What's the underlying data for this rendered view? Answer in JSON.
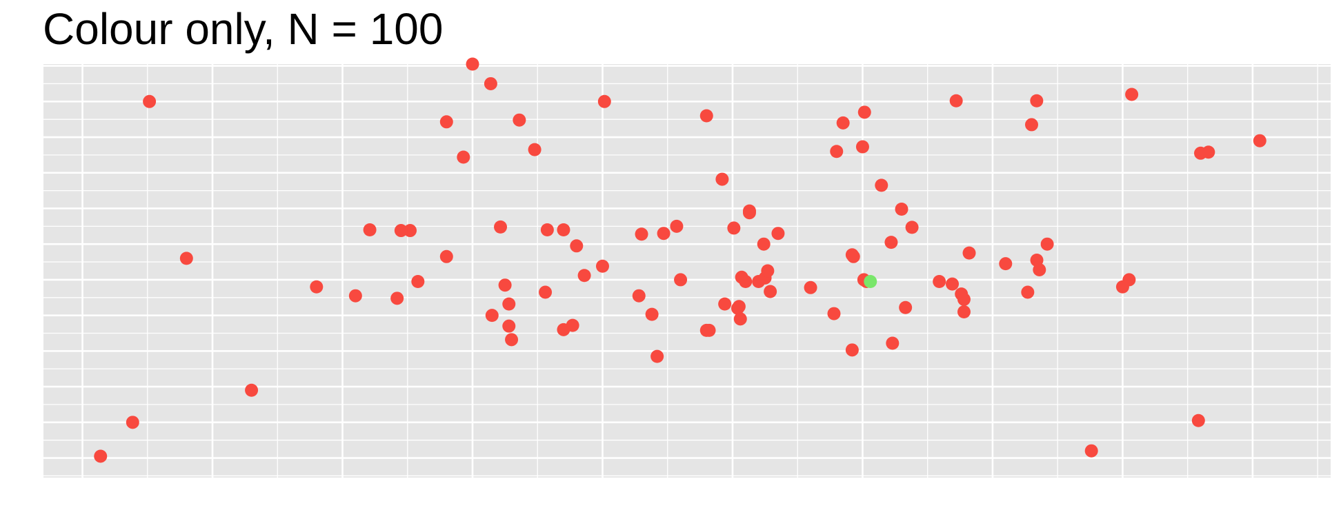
{
  "chart_data": {
    "type": "scatter",
    "title": "Colour only, N = 100",
    "xlabel": "",
    "ylabel": "",
    "grid": true,
    "legend": "none",
    "axis_ticks_labels_shown": false,
    "xlim": [
      -0.3,
      9.6
    ],
    "ylim": [
      -0.55,
      11.05
    ],
    "colors": {
      "panel": "#e5e5e5",
      "grid": "#ffffff",
      "default_point": "#f8493f",
      "highlight_point": "#79e66a"
    },
    "x": [
      0.139,
      3.0,
      3.478,
      4.8,
      7.339,
      6.015,
      0.515,
      6.72,
      8.07,
      7.3,
      9.055,
      4.015,
      3.14,
      3.36,
      8.6,
      8.66,
      1.3,
      8.583,
      7.76,
      5.13,
      5.85,
      2.93,
      4.92,
      5.13,
      2.21,
      2.52,
      4.57,
      5.35,
      6.145,
      2.8,
      6.0,
      6.3,
      5.8,
      0.386,
      3.215,
      5.01,
      0.8,
      3.7,
      3.575,
      2.45,
      4.3,
      4.47,
      2.58,
      3.8,
      5.92,
      6.22,
      5.24,
      7.1,
      4.6,
      4.28,
      3.25,
      3.86,
      5.07,
      7.27,
      6.82,
      8.05,
      1.8,
      2.1,
      2.42,
      3.15,
      3.28,
      3.56,
      5.05,
      5.04,
      5.06,
      4.0,
      4.38,
      6.01,
      6.03,
      3.28,
      4.8,
      3.7,
      5.92,
      6.23,
      3.77,
      4.94,
      4.82,
      5.29,
      5.6,
      7.34,
      4.42,
      6.69,
      6.76,
      7.36,
      6.78,
      6.78,
      8.0,
      3.3,
      6.59,
      5.78,
      5.1,
      5.2,
      6.33,
      2.8,
      5.25,
      5.27,
      6.38,
      7.42,
      5.93,
      6.06
    ],
    "y": [
      0.05,
      11.05,
      8.65,
      9.6,
      10.02,
      9.7,
      10.0,
      10.02,
      10.2,
      9.35,
      8.9,
      10.0,
      10.5,
      9.48,
      8.55,
      8.58,
      1.9,
      1.05,
      0.2,
      6.93,
      9.4,
      8.44,
      7.82,
      6.88,
      6.4,
      6.38,
      6.5,
      6.3,
      7.65,
      9.43,
      8.73,
      6.98,
      8.6,
      1.0,
      6.48,
      6.45,
      5.6,
      6.4,
      6.4,
      6.38,
      6.28,
      6.3,
      4.95,
      5.95,
      5.7,
      6.05,
      6.0,
      5.45,
      5.0,
      4.55,
      4.85,
      5.12,
      5.07,
      4.65,
      5.75,
      5.0,
      4.8,
      4.55,
      4.48,
      4.0,
      3.7,
      4.65,
      4.25,
      4.2,
      3.9,
      5.38,
      4.03,
      5.0,
      4.95,
      4.32,
      3.58,
      3.6,
      3.03,
      3.22,
      3.72,
      4.32,
      3.58,
      4.67,
      4.78,
      5.55,
      2.85,
      4.88,
      4.6,
      5.28,
      4.1,
      4.45,
      4.8,
      3.32,
      4.95,
      4.05,
      4.95,
      4.95,
      4.22,
      5.65,
      5.05,
      5.25,
      6.47,
      6.0,
      5.65,
      4.95
    ],
    "highlight_index": 99
  }
}
